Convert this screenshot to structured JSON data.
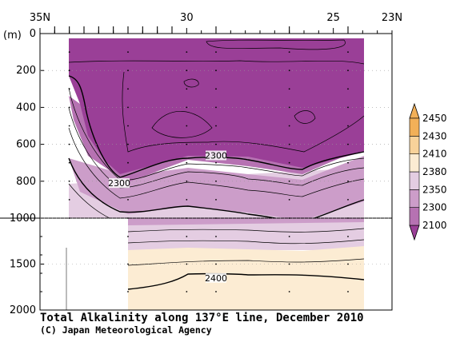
{
  "chart_data": {
    "type": "heatmap",
    "title": "Total Alkalinity along 137°E line, December 2010",
    "credit": "(C) Japan Meteorological Agency",
    "y_unit": "(m)",
    "x_tick_labels": [
      "35N",
      "30",
      "25",
      "23N"
    ],
    "x_ticks": [
      35,
      30,
      25,
      23
    ],
    "xlim": [
      35,
      23
    ],
    "y_ticks_upper": [
      0,
      200,
      400,
      600,
      800,
      1000
    ],
    "y_ticks_lower": [
      1500,
      2000
    ],
    "ylim": [
      0,
      2000
    ],
    "depth_axis_break": 1000,
    "colorbar_levels": [
      2100,
      2300,
      2350,
      2380,
      2410,
      2430,
      2450
    ],
    "colorbar_colors": [
      "#9a3f97",
      "#b672b2",
      "#cc9dc9",
      "#e4cde2",
      "#fcecd3",
      "#f8d29a",
      "#f2b058"
    ],
    "contour_labels": [
      {
        "text": "2300",
        "lat": 29.0,
        "depth": 660
      },
      {
        "text": "2300",
        "lat": 32.3,
        "depth": 810
      },
      {
        "text": "2400",
        "lat": 29.0,
        "depth": 1650
      }
    ]
  }
}
